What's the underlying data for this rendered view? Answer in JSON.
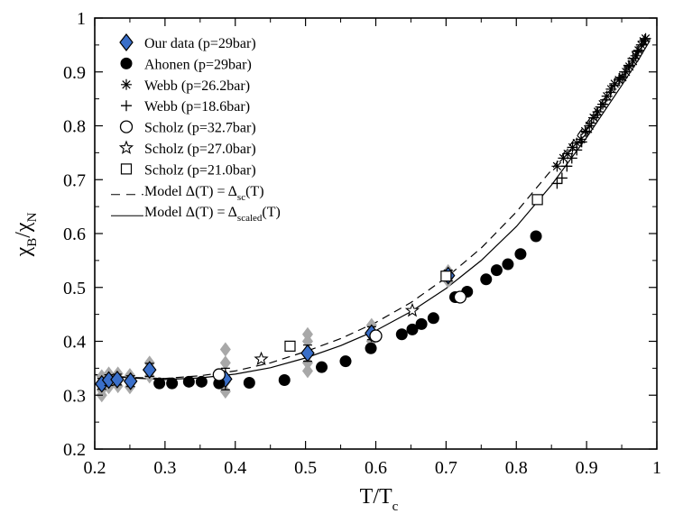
{
  "chart_data": {
    "type": "scatter",
    "xlabel": "T/T",
    "xlabel_sub": "c",
    "ylabel_parts": [
      "χ",
      "B",
      "/χ",
      "N"
    ],
    "xlim": [
      0.2,
      1.0
    ],
    "ylim": [
      0.2,
      1.0
    ],
    "xticks": [
      0.2,
      0.3,
      0.4,
      0.5,
      0.6,
      0.7,
      0.8,
      0.9,
      1.0
    ],
    "yticks": [
      0.2,
      0.3,
      0.4,
      0.5,
      0.6,
      0.7,
      0.8,
      0.9,
      1.0
    ],
    "xtick_labels": [
      "0.2",
      "0.3",
      "0.4",
      "0.5",
      "0.6",
      "0.7",
      "0.8",
      "0.9",
      "1"
    ],
    "ytick_labels": [
      "0.2",
      "0.3",
      "0.4",
      "0.5",
      "0.6",
      "0.7",
      "0.8",
      "0.9",
      "1"
    ],
    "colors": {
      "our_data": "#3a6fc9",
      "scatter_gray": "#a8a8a8",
      "ink": "#000000"
    },
    "legend": {
      "position": "top-left",
      "entries": [
        {
          "marker": "diamond",
          "text": "Our data (p=29bar)"
        },
        {
          "marker": "filled-circle",
          "text": "Ahonen (p=29bar)"
        },
        {
          "marker": "asterisk",
          "text": "Webb (p=26.2bar)"
        },
        {
          "marker": "plus",
          "text": "Webb (p=18.6bar)"
        },
        {
          "marker": "open-circle",
          "text": "Scholz (p=32.7bar)"
        },
        {
          "marker": "open-star",
          "text": "Scholz (p=27.0bar)"
        },
        {
          "marker": "open-square",
          "text": "Scholz (p=21.0bar)"
        },
        {
          "marker": "dashed-line",
          "text": "Model Δ(T) = Δ",
          "sub": "sc",
          "tail": "(T)"
        },
        {
          "marker": "solid-line",
          "text": "Model Δ(T) = Δ",
          "sub": "scaled",
          "tail": "(T)"
        }
      ]
    },
    "series": [
      {
        "name": "Our data (p=29bar)",
        "marker": "diamond",
        "points": [
          {
            "x": 0.21,
            "y": 0.321,
            "err": 0.01
          },
          {
            "x": 0.22,
            "y": 0.328,
            "err": 0.01
          },
          {
            "x": 0.232,
            "y": 0.329,
            "err": 0.01
          },
          {
            "x": 0.251,
            "y": 0.326,
            "err": 0.01
          },
          {
            "x": 0.278,
            "y": 0.347,
            "err": 0.012
          },
          {
            "x": 0.386,
            "y": 0.33,
            "err": 0.02
          },
          {
            "x": 0.503,
            "y": 0.378,
            "err": 0.015
          },
          {
            "x": 0.594,
            "y": 0.415,
            "err": 0.012
          },
          {
            "x": 0.703,
            "y": 0.522,
            "err": 0.01
          }
        ],
        "scatter": [
          [
            0.21,
            0.31
          ],
          [
            0.21,
            0.335
          ],
          [
            0.21,
            0.3
          ],
          [
            0.22,
            0.34
          ],
          [
            0.22,
            0.315
          ],
          [
            0.233,
            0.34
          ],
          [
            0.233,
            0.317
          ],
          [
            0.25,
            0.337
          ],
          [
            0.25,
            0.315
          ],
          [
            0.278,
            0.36
          ],
          [
            0.278,
            0.335
          ],
          [
            0.386,
            0.385
          ],
          [
            0.386,
            0.36
          ],
          [
            0.386,
            0.307
          ],
          [
            0.386,
            0.325
          ],
          [
            0.503,
            0.413
          ],
          [
            0.503,
            0.4
          ],
          [
            0.503,
            0.36
          ],
          [
            0.503,
            0.345
          ],
          [
            0.594,
            0.43
          ],
          [
            0.594,
            0.4
          ],
          [
            0.703,
            0.53
          ],
          [
            0.703,
            0.512
          ]
        ]
      },
      {
        "name": "Ahonen (p=29bar)",
        "marker": "filled-circle",
        "points": [
          [
            0.292,
            0.322
          ],
          [
            0.31,
            0.322
          ],
          [
            0.334,
            0.325
          ],
          [
            0.352,
            0.325
          ],
          [
            0.377,
            0.322
          ],
          [
            0.42,
            0.323
          ],
          [
            0.47,
            0.328
          ],
          [
            0.523,
            0.352
          ],
          [
            0.557,
            0.363
          ],
          [
            0.593,
            0.387
          ],
          [
            0.637,
            0.413
          ],
          [
            0.652,
            0.422
          ],
          [
            0.665,
            0.432
          ],
          [
            0.682,
            0.443
          ],
          [
            0.713,
            0.482
          ],
          [
            0.73,
            0.492
          ],
          [
            0.757,
            0.515
          ],
          [
            0.772,
            0.532
          ],
          [
            0.788,
            0.543
          ],
          [
            0.806,
            0.562
          ],
          [
            0.828,
            0.595
          ]
        ]
      },
      {
        "name": "Webb (p=26.2bar)",
        "marker": "asterisk",
        "points": [
          [
            0.858,
            0.725
          ],
          [
            0.867,
            0.74
          ],
          [
            0.873,
            0.748
          ],
          [
            0.88,
            0.76
          ],
          [
            0.886,
            0.768
          ],
          [
            0.892,
            0.775
          ],
          [
            0.898,
            0.79
          ],
          [
            0.904,
            0.8
          ],
          [
            0.91,
            0.815
          ],
          [
            0.916,
            0.826
          ],
          [
            0.923,
            0.84
          ],
          [
            0.929,
            0.855
          ],
          [
            0.935,
            0.868
          ],
          [
            0.94,
            0.878
          ],
          [
            0.946,
            0.885
          ],
          [
            0.951,
            0.89
          ],
          [
            0.956,
            0.9
          ],
          [
            0.961,
            0.91
          ],
          [
            0.966,
            0.92
          ],
          [
            0.97,
            0.93
          ],
          [
            0.974,
            0.94
          ],
          [
            0.978,
            0.95
          ],
          [
            0.981,
            0.957
          ],
          [
            0.984,
            0.962
          ]
        ]
      },
      {
        "name": "Webb (p=18.6bar)",
        "marker": "plus",
        "points": [
          [
            0.858,
            0.693
          ],
          [
            0.865,
            0.703
          ],
          [
            0.872,
            0.725
          ],
          [
            0.879,
            0.74
          ],
          [
            0.886,
            0.755
          ],
          [
            0.893,
            0.77
          ],
          [
            0.9,
            0.788
          ],
          [
            0.907,
            0.805
          ],
          [
            0.914,
            0.82
          ],
          [
            0.92,
            0.835
          ],
          [
            0.927,
            0.848
          ],
          [
            0.934,
            0.862
          ],
          [
            0.94,
            0.875
          ],
          [
            0.947,
            0.888
          ],
          [
            0.954,
            0.9
          ],
          [
            0.96,
            0.912
          ],
          [
            0.966,
            0.925
          ],
          [
            0.972,
            0.938
          ],
          [
            0.978,
            0.95
          ],
          [
            0.983,
            0.96
          ]
        ]
      },
      {
        "name": "Scholz (p=32.7bar)",
        "marker": "open-circle",
        "points": [
          [
            0.377,
            0.338
          ],
          [
            0.6,
            0.41
          ],
          [
            0.72,
            0.482
          ]
        ]
      },
      {
        "name": "Scholz (p=27.0bar)",
        "marker": "open-star",
        "points": [
          [
            0.437,
            0.367
          ],
          [
            0.652,
            0.457
          ]
        ]
      },
      {
        "name": "Scholz (p=21.0bar)",
        "marker": "open-square",
        "points": [
          [
            0.478,
            0.391
          ],
          [
            0.7,
            0.521
          ],
          [
            0.83,
            0.663
          ]
        ]
      },
      {
        "name": "Model Δ(T) = Δsc(T)",
        "marker": "dashed-line",
        "line": [
          [
            0.2,
            0.338
          ],
          [
            0.25,
            0.333
          ],
          [
            0.3,
            0.331
          ],
          [
            0.35,
            0.336
          ],
          [
            0.4,
            0.345
          ],
          [
            0.45,
            0.36
          ],
          [
            0.5,
            0.381
          ],
          [
            0.55,
            0.405
          ],
          [
            0.6,
            0.435
          ],
          [
            0.65,
            0.472
          ],
          [
            0.7,
            0.518
          ],
          [
            0.75,
            0.573
          ],
          [
            0.8,
            0.64
          ],
          [
            0.85,
            0.718
          ],
          [
            0.9,
            0.805
          ],
          [
            0.95,
            0.895
          ],
          [
            0.975,
            0.94
          ],
          [
            0.99,
            0.965
          ]
        ]
      },
      {
        "name": "Model Δ(T) = Δscaled(T)",
        "marker": "solid-line",
        "line": [
          [
            0.2,
            0.338
          ],
          [
            0.25,
            0.332
          ],
          [
            0.3,
            0.329
          ],
          [
            0.35,
            0.332
          ],
          [
            0.4,
            0.339
          ],
          [
            0.45,
            0.351
          ],
          [
            0.5,
            0.369
          ],
          [
            0.55,
            0.392
          ],
          [
            0.6,
            0.42
          ],
          [
            0.65,
            0.455
          ],
          [
            0.7,
            0.498
          ],
          [
            0.75,
            0.55
          ],
          [
            0.8,
            0.613
          ],
          [
            0.85,
            0.69
          ],
          [
            0.9,
            0.778
          ],
          [
            0.95,
            0.875
          ],
          [
            0.975,
            0.925
          ],
          [
            0.99,
            0.958
          ]
        ]
      }
    ]
  }
}
